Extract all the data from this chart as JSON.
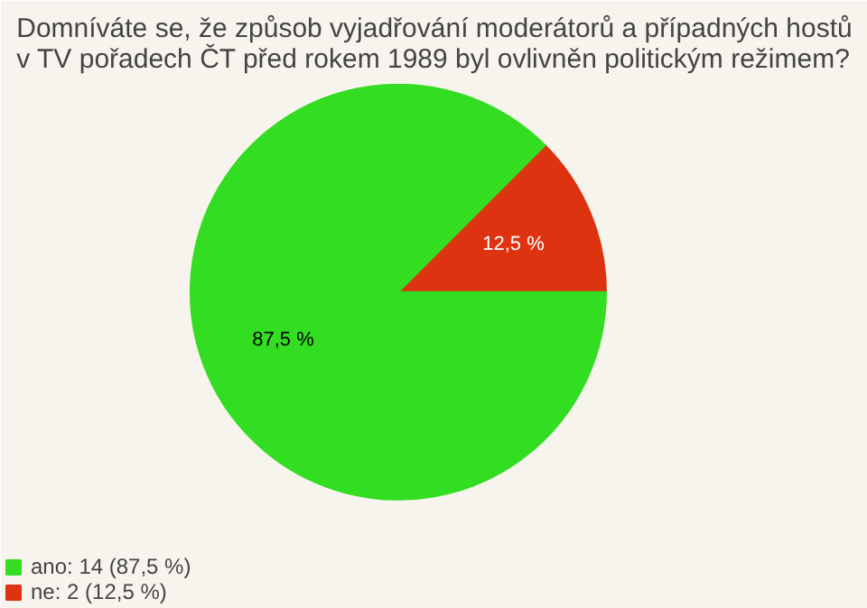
{
  "chart_data": {
    "type": "pie",
    "title": "Domníváte se, že způsob vyjadřování moderátorů a případných hostů\nv TV pořadech ČT před rokem 1989 byl ovlivněn politickým režimem?",
    "categories": [
      "ano: 14 (87,5 %)",
      "ne: 2 (12,5 %)"
    ],
    "values": [
      87.5,
      12.5
    ],
    "colors": [
      "#33dd22",
      "#dd3311"
    ],
    "value_labels": [
      "87,5 %",
      "12,5 %"
    ],
    "legend": "bottom left"
  }
}
